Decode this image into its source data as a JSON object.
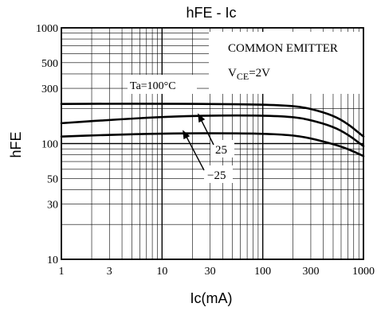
{
  "chart_data": {
    "type": "line",
    "title": "hFE - Ic",
    "xlabel": "Ic(mA)",
    "ylabel": "hFE",
    "x_scale": "log",
    "y_scale": "log",
    "xlim": [
      1,
      1000
    ],
    "ylim": [
      10,
      1000
    ],
    "grid": true,
    "x_ticks": [
      {
        "value": 1,
        "label": "1"
      },
      {
        "value": 3,
        "label": "3"
      },
      {
        "value": 10,
        "label": "10"
      },
      {
        "value": 30,
        "label": "30"
      },
      {
        "value": 100,
        "label": "100"
      },
      {
        "value": 300,
        "label": "300"
      },
      {
        "value": 1000,
        "label": "1000"
      }
    ],
    "y_ticks": [
      {
        "value": 10,
        "label": "10"
      },
      {
        "value": 30,
        "label": "30"
      },
      {
        "value": 50,
        "label": "50"
      },
      {
        "value": 100,
        "label": "100"
      },
      {
        "value": 300,
        "label": "300"
      },
      {
        "value": 500,
        "label": "500"
      },
      {
        "value": 1000,
        "label": "1000"
      }
    ],
    "annotation": {
      "line1": "COMMON EMITTER",
      "vce_symbol": "V",
      "vce_sub": "CE",
      "vce_value": "=2V"
    },
    "series": [
      {
        "name": "Ta=100°C",
        "x": [
          1,
          3,
          10,
          30,
          100,
          200,
          300,
          500,
          700,
          1000
        ],
        "y": [
          220,
          221,
          221,
          220,
          217,
          212,
          200,
          175,
          148,
          115
        ]
      },
      {
        "name": "25",
        "x": [
          1,
          3,
          10,
          30,
          100,
          200,
          300,
          500,
          700,
          1000
        ],
        "y": [
          150,
          160,
          170,
          175,
          175,
          170,
          160,
          140,
          120,
          95
        ]
      },
      {
        "name": "−25",
        "x": [
          1,
          3,
          10,
          30,
          100,
          200,
          300,
          500,
          700,
          1000
        ],
        "y": [
          115,
          119,
          122,
          123,
          122,
          118,
          111,
          99,
          90,
          78
        ]
      }
    ]
  }
}
